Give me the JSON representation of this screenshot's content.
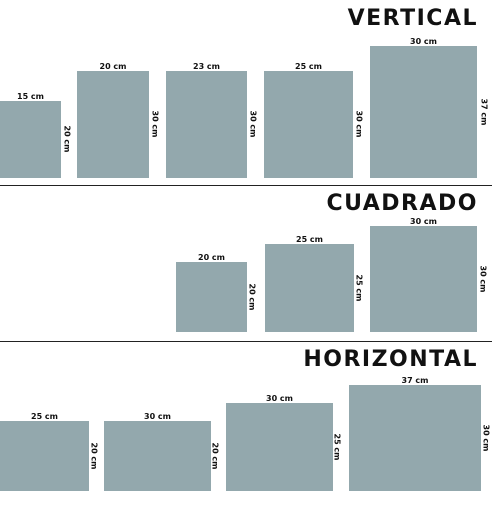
{
  "sections": [
    {
      "title": "VERTICAL",
      "sizes": [
        {
          "width": "15 cm",
          "height": "20 cm"
        },
        {
          "width": "20 cm",
          "height": "30 cm"
        },
        {
          "width": "23 cm",
          "height": "30 cm"
        },
        {
          "width": "25 cm",
          "height": "30 cm"
        },
        {
          "width": "30 cm",
          "height": "37 cm"
        }
      ]
    },
    {
      "title": "CUADRADO",
      "sizes": [
        {
          "width": "20 cm",
          "height": "20 cm"
        },
        {
          "width": "25 cm",
          "height": "25 cm"
        },
        {
          "width": "30 cm",
          "height": "30 cm"
        }
      ]
    },
    {
      "title": "HORIZONTAL",
      "sizes": [
        {
          "width": "25 cm",
          "height": "20 cm"
        },
        {
          "width": "30 cm",
          "height": "20 cm"
        },
        {
          "width": "30 cm",
          "height": "25 cm"
        },
        {
          "width": "37 cm",
          "height": "30 cm"
        }
      ]
    }
  ],
  "colors": {
    "frame": "#93a8ad",
    "text": "#111111",
    "divider": "#222222"
  }
}
